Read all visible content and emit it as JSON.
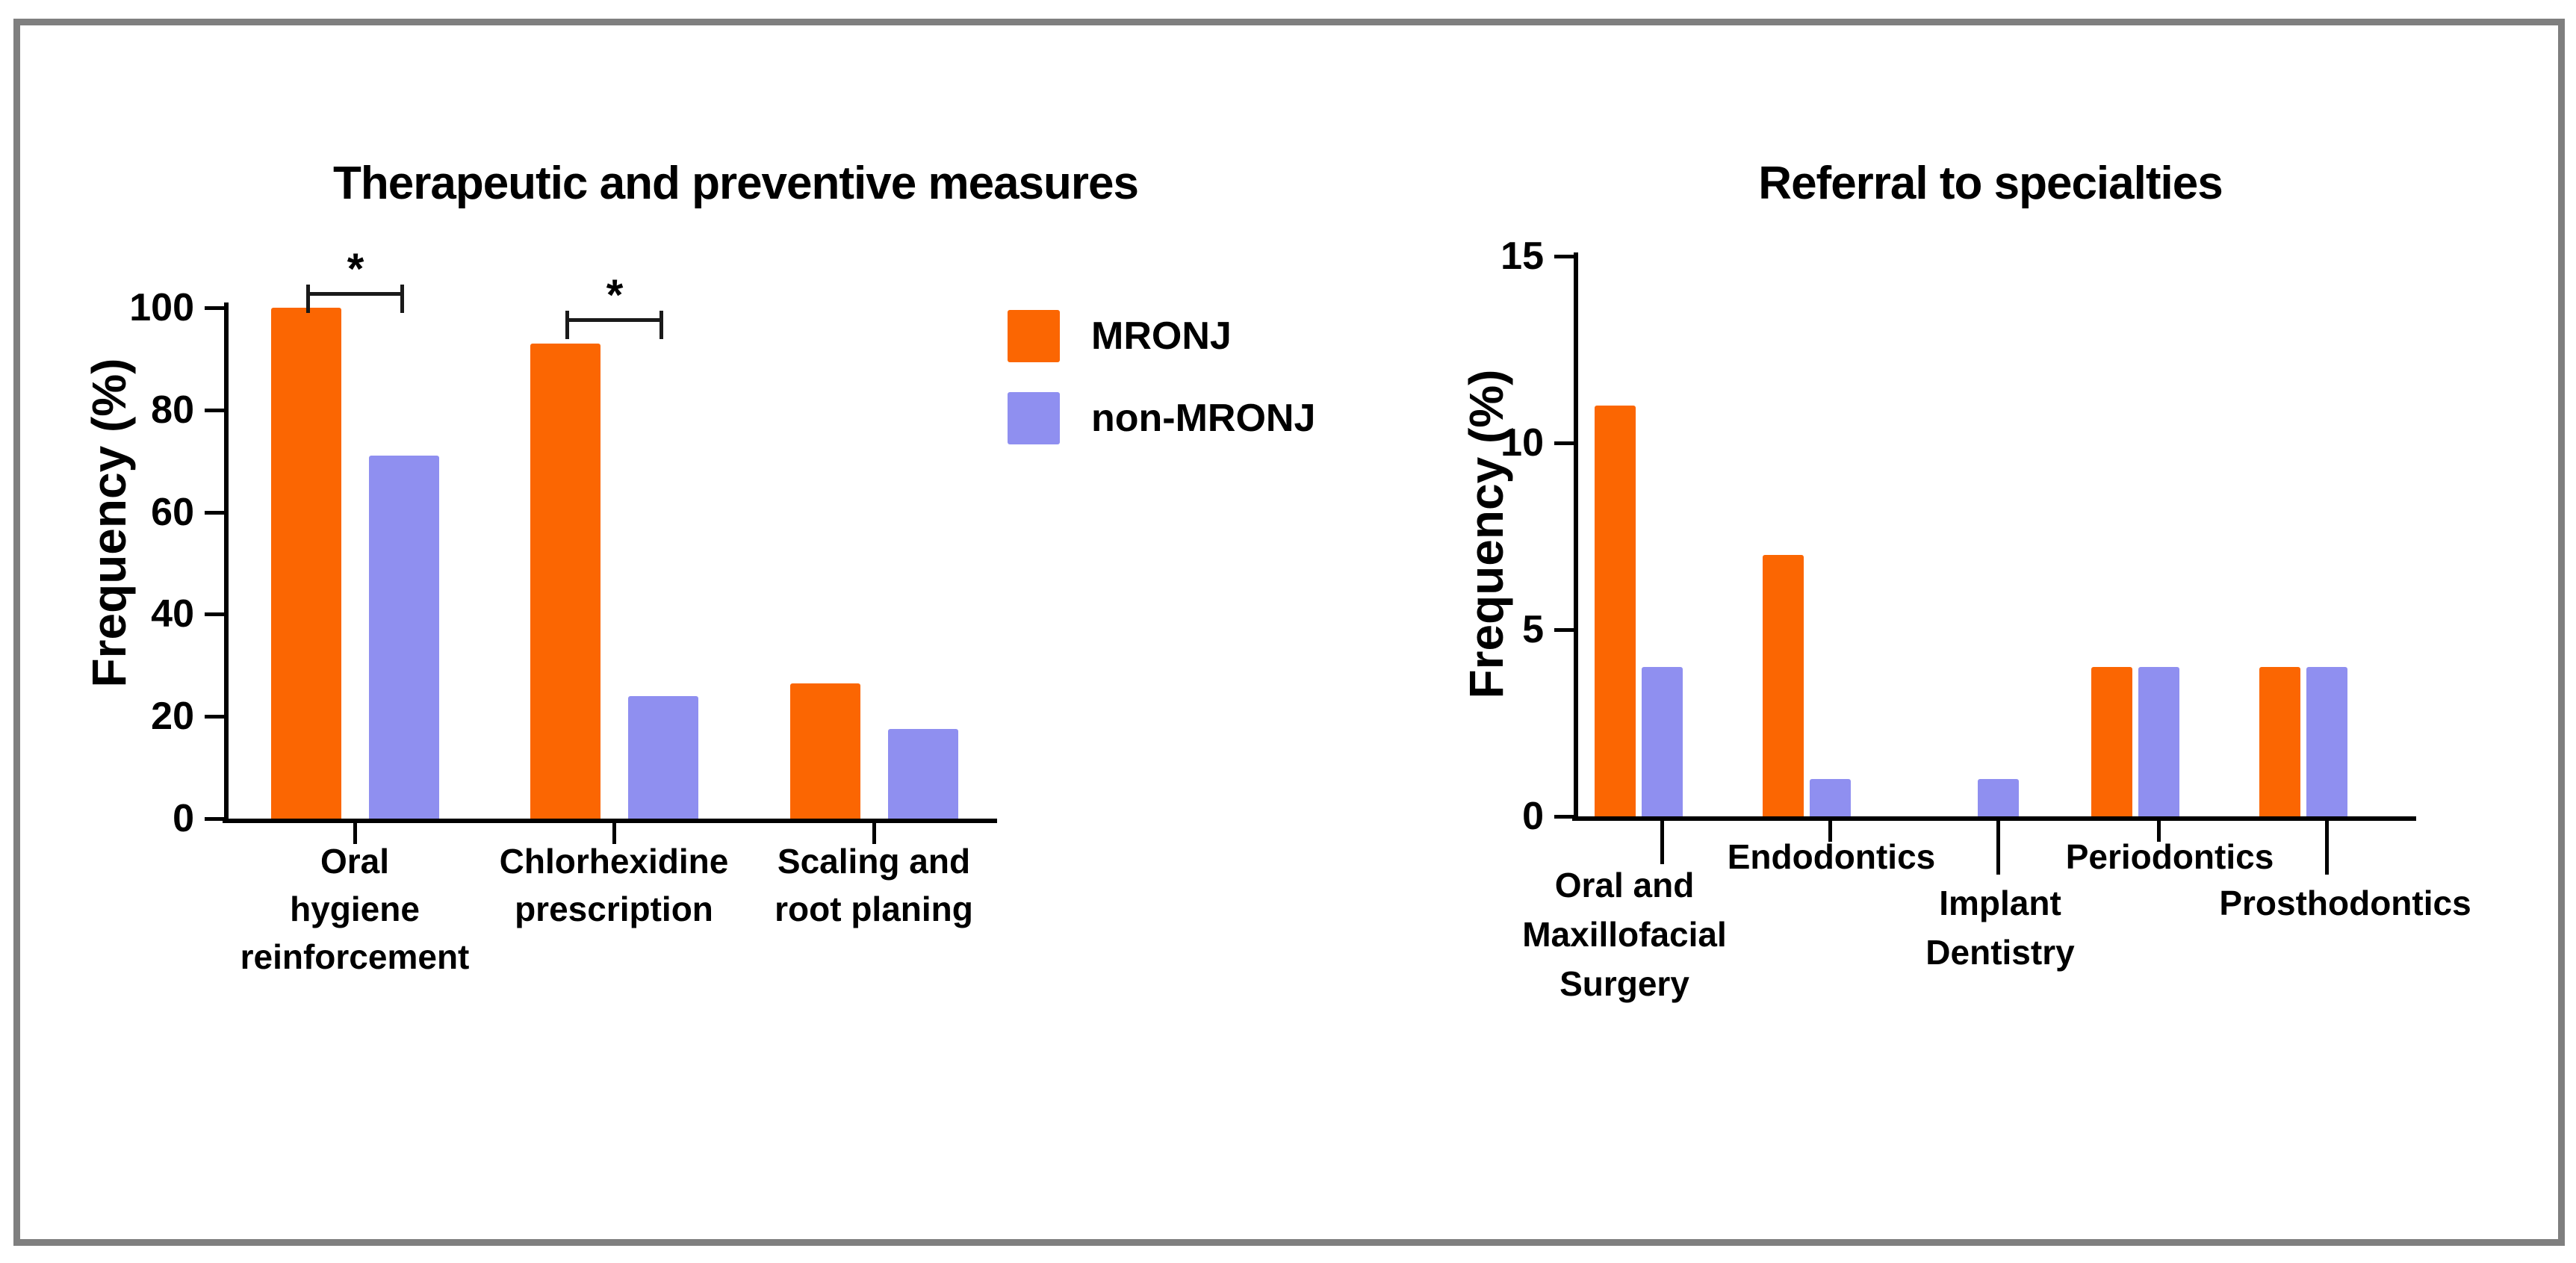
{
  "figure": {
    "border_color": "#7f7f7f",
    "background_color": "#ffffff",
    "accent_orange": "#fb6602",
    "accent_purple": "#8f8ff0"
  },
  "legend": {
    "items": [
      {
        "label": "MRONJ",
        "color": "#fb6602"
      },
      {
        "label": "non-MRONJ",
        "color": "#8f8ff0"
      }
    ]
  },
  "chart_data": [
    {
      "type": "bar",
      "title": "Therapeutic and preventive measures",
      "ylabel": "Frequency (%)",
      "xlabel": "",
      "ylim": [
        0,
        100
      ],
      "yticks": [
        0,
        20,
        40,
        60,
        80,
        100
      ],
      "grid": false,
      "legend_position": "right-of-chart",
      "categories": [
        "Oral\nhygiene\nreinforcement",
        "Chlorhexidine\nprescription",
        "Scaling and\nroot planing"
      ],
      "series": [
        {
          "name": "MRONJ",
          "color": "#fb6602",
          "values": [
            100,
            93,
            26.5
          ]
        },
        {
          "name": "non-MRONJ",
          "color": "#8f8ff0",
          "values": [
            71,
            24,
            17.5
          ]
        }
      ],
      "annotations": [
        {
          "type": "significance-bracket",
          "category_index": 0,
          "label": "*"
        },
        {
          "type": "significance-bracket",
          "category_index": 1,
          "label": "*"
        }
      ]
    },
    {
      "type": "bar",
      "title": "Referral to specialties",
      "ylabel": "Frequency (%)",
      "xlabel": "",
      "ylim": [
        0,
        15
      ],
      "yticks": [
        0,
        5,
        10,
        15
      ],
      "grid": false,
      "categories": [
        "Oral and\nMaxillofacial\nSurgery",
        "Endodontics",
        "Implant\nDentistry",
        "Periodontics",
        "Prosthodontics"
      ],
      "label_rows": [
        1,
        0,
        1,
        0,
        1
      ],
      "series": [
        {
          "name": "MRONJ",
          "color": "#fb6602",
          "values": [
            11,
            7,
            0,
            4,
            4
          ]
        },
        {
          "name": "non-MRONJ",
          "color": "#8f8ff0",
          "values": [
            4,
            1,
            1,
            4,
            4
          ]
        }
      ],
      "annotations": []
    }
  ]
}
